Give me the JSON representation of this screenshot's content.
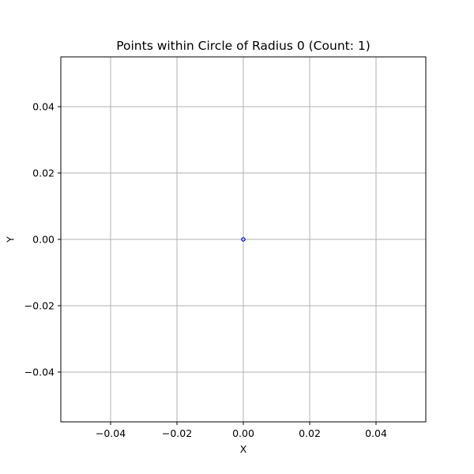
{
  "chart_data": {
    "type": "scatter",
    "title": "Points within Circle of Radius 0 (Count: 1)",
    "xlabel": "X",
    "ylabel": "Y",
    "xlim": [
      -0.055,
      0.055
    ],
    "ylim": [
      -0.055,
      0.055
    ],
    "xticks": [
      -0.04,
      -0.02,
      0.0,
      0.02,
      0.04
    ],
    "yticks": [
      -0.04,
      -0.02,
      0.0,
      0.02,
      0.04
    ],
    "xtick_labels": [
      "−0.04",
      "−0.02",
      "0.00",
      "0.02",
      "0.04"
    ],
    "ytick_labels": [
      "−0.04",
      "−0.02",
      "0.00",
      "0.02",
      "0.04"
    ],
    "grid": true,
    "series": [
      {
        "x": [
          0.0
        ],
        "y": [
          0.0
        ],
        "color": "#0000ff",
        "marker": "open-circle"
      }
    ]
  },
  "colors": {
    "grid": "#b0b0b0",
    "axes": "#000000",
    "background": "#ffffff"
  }
}
